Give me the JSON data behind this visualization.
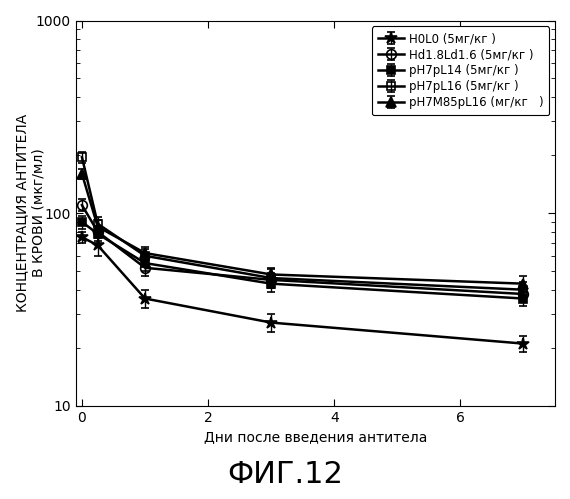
{
  "title": "ФИГ.12",
  "xlabel": "Дни после введения антитела",
  "ylabel": "КОНЦЕНТРАЦИЯ АНТИТЕЛА\nВ КРОВИ (мкг/мл)",
  "xlim": [
    -0.1,
    7.5
  ],
  "ylim": [
    10,
    1000
  ],
  "xticks": [
    0,
    2,
    4,
    6
  ],
  "series": [
    {
      "label": "H0L0 (5мг/кг )",
      "x": [
        0.0,
        0.25,
        1.0,
        3.0,
        7.0
      ],
      "y": [
        75,
        68,
        36,
        27,
        21
      ],
      "yerr": [
        5,
        8,
        4,
        3,
        2
      ],
      "color": "#000000",
      "marker": "*",
      "markersize": 9,
      "linestyle": "-",
      "linewidth": 1.8,
      "fillstyle": "full"
    },
    {
      "label": "Hd1.8Ld1.6 (5мг/кг )",
      "x": [
        0.0,
        0.25,
        1.0,
        3.0,
        7.0
      ],
      "y": [
        110,
        80,
        52,
        45,
        38
      ],
      "yerr": [
        8,
        6,
        5,
        4,
        3
      ],
      "color": "#000000",
      "marker": "o",
      "markersize": 7,
      "linestyle": "-",
      "linewidth": 1.8,
      "fillstyle": "none"
    },
    {
      "label": "pH7pL14 (5мг/кг )",
      "x": [
        0.0,
        0.25,
        1.0,
        3.0,
        7.0
      ],
      "y": [
        90,
        78,
        55,
        43,
        36
      ],
      "yerr": [
        7,
        6,
        5,
        4,
        3
      ],
      "color": "#000000",
      "marker": "s",
      "markersize": 6,
      "linestyle": "-",
      "linewidth": 1.8,
      "fillstyle": "full"
    },
    {
      "label": "pH7pL16 (5мг/кг )",
      "x": [
        0.0,
        0.25,
        1.0,
        3.0,
        7.0
      ],
      "y": [
        195,
        88,
        60,
        46,
        40
      ],
      "yerr": [
        12,
        7,
        5,
        5,
        4
      ],
      "color": "#000000",
      "marker": "s",
      "markersize": 6,
      "linestyle": "-",
      "linewidth": 1.8,
      "fillstyle": "none"
    },
    {
      "label": "pH7M85pL16 (мг/кг   )",
      "x": [
        0.0,
        0.25,
        1.0,
        3.0,
        7.0
      ],
      "y": [
        160,
        85,
        62,
        48,
        43
      ],
      "yerr": [
        10,
        7,
        5,
        4,
        4
      ],
      "color": "#000000",
      "marker": "^",
      "markersize": 7,
      "linestyle": "-",
      "linewidth": 1.8,
      "fillstyle": "full"
    }
  ],
  "background_color": "#ffffff",
  "legend_fontsize": 8.5,
  "axis_fontsize": 10,
  "title_fontsize": 22
}
